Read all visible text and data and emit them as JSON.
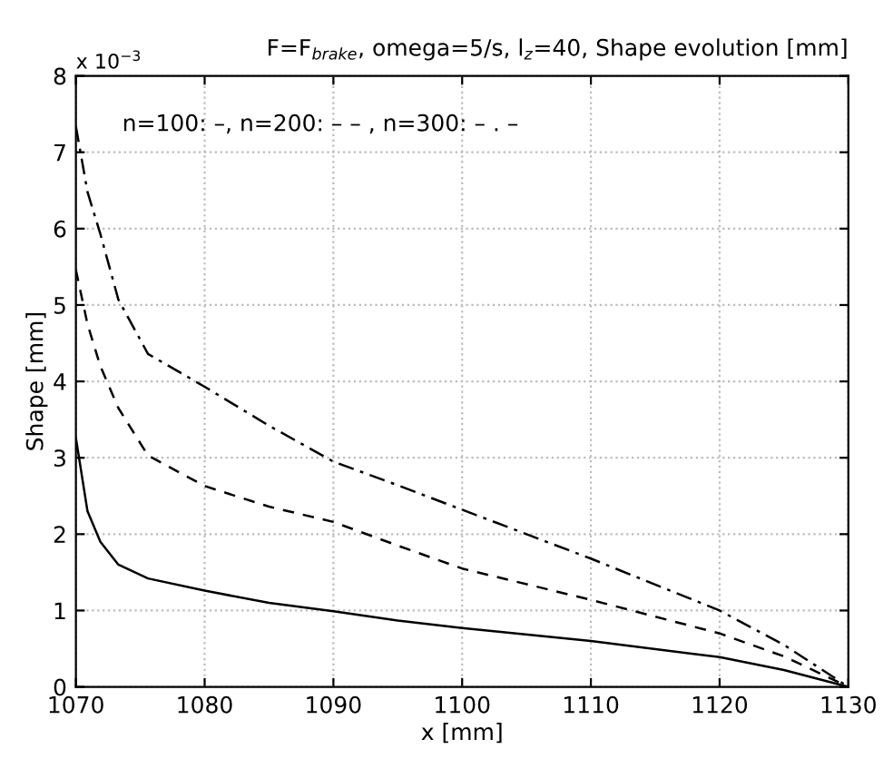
{
  "chart_data": {
    "type": "line",
    "title": "F=F$_{brake}$, omega=5/s, l$_{z}$=40, Shape evolution [mm]",
    "xlabel": "x [mm]",
    "ylabel": "Shape [mm]",
    "annotations": [
      "x 10$^{−3}$",
      "n=100: –, n=200: – – , n=300: – . –"
    ],
    "x": [
      1070,
      1070.9,
      1071.9,
      1073.3,
      1075.6,
      1080,
      1085,
      1090,
      1095,
      1100,
      1110,
      1120,
      1125,
      1130
    ],
    "series": [
      {
        "color": "#000000",
        "line_style": "solid",
        "values": [
          3.26,
          2.3,
          1.9,
          1.6,
          1.42,
          1.26,
          1.1,
          0.99,
          0.87,
          0.77,
          0.6,
          0.39,
          0.22,
          0
        ]
      },
      {
        "color": "#000000",
        "line_style": "dashed",
        "values": [
          5.46,
          4.75,
          4.2,
          3.65,
          3.03,
          2.63,
          2.36,
          2.16,
          1.85,
          1.55,
          1.14,
          0.7,
          0.4,
          0
        ]
      },
      {
        "color": "#000000",
        "line_style": "dashdot",
        "values": [
          7.34,
          6.48,
          5.93,
          5.07,
          4.36,
          3.93,
          3.42,
          2.95,
          2.64,
          2.32,
          1.68,
          1.0,
          0.55,
          0
        ]
      }
    ],
    "xlim": [
      1070,
      1130
    ],
    "xticks": [
      1070,
      1080,
      1090,
      1100,
      1110,
      1120,
      1130
    ],
    "ylim": [
      0,
      8
    ],
    "yticks": [
      0,
      1,
      2,
      3,
      4,
      5,
      6,
      7,
      8
    ],
    "grid": true
  }
}
